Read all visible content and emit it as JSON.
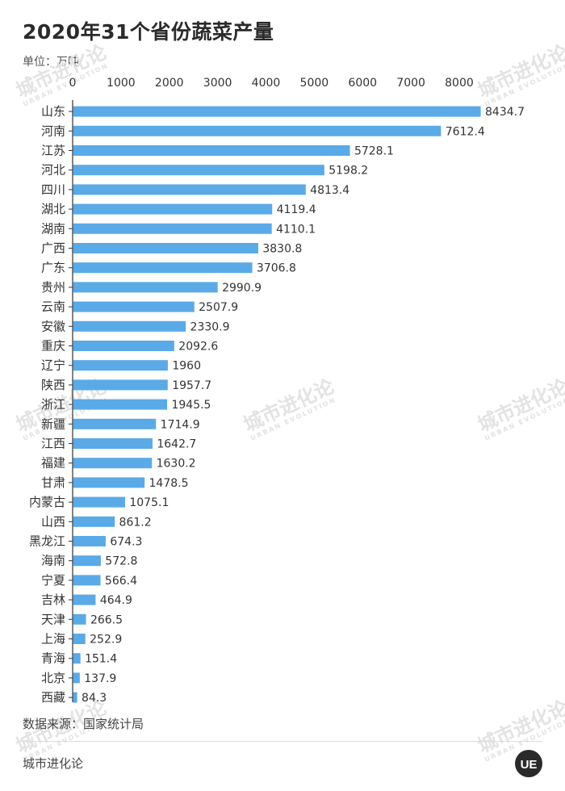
{
  "title": "2020年31个省份蔬菜产量",
  "unit_label": "单位：万吨",
  "source": "数据来源：国家统计局",
  "brand": "城市进化论",
  "logo_text": "UE",
  "watermark": {
    "text": "城市进化论",
    "sub": "URBAN EVOLUTION"
  },
  "colors": {
    "bar": "#5aaae8",
    "axis": "#333333",
    "text": "#333333"
  },
  "chart_data": {
    "type": "bar",
    "orientation": "horizontal",
    "title": "2020年31个省份蔬菜产量",
    "unit": "万吨",
    "xlim": [
      0,
      8434.7
    ],
    "xticks": [
      0,
      1000,
      2000,
      3000,
      4000,
      5000,
      6000,
      7000,
      8000
    ],
    "tick_labels": [
      "0",
      "1000",
      "2000",
      "3000",
      "4000",
      "5000",
      "6000",
      "7000",
      "8000"
    ],
    "grid": false,
    "categories": [
      "山东",
      "河南",
      "江苏",
      "河北",
      "四川",
      "湖北",
      "湖南",
      "广西",
      "广东",
      "贵州",
      "云南",
      "安徽",
      "重庆",
      "辽宁",
      "陕西",
      "浙江",
      "新疆",
      "江西",
      "福建",
      "甘肃",
      "内蒙古",
      "山西",
      "黑龙江",
      "海南",
      "宁夏",
      "吉林",
      "天津",
      "上海",
      "青海",
      "北京",
      "西藏"
    ],
    "values": [
      8434.7,
      7612.4,
      5728.1,
      5198.2,
      4813.4,
      4119.4,
      4110.1,
      3830.8,
      3706.8,
      2990.9,
      2507.9,
      2330.9,
      2092.6,
      1960,
      1957.7,
      1945.5,
      1714.9,
      1642.7,
      1630.2,
      1478.5,
      1075.1,
      861.2,
      674.3,
      572.8,
      566.4,
      464.9,
      266.5,
      252.9,
      151.4,
      137.9,
      84.3
    ],
    "value_labels": [
      "8434.7",
      "7612.4",
      "5728.1",
      "5198.2",
      "4813.4",
      "4119.4",
      "4110.1",
      "3830.8",
      "3706.8",
      "2990.9",
      "2507.9",
      "2330.9",
      "2092.6",
      "1960",
      "1957.7",
      "1945.5",
      "1714.9",
      "1642.7",
      "1630.2",
      "1478.5",
      "1075.1",
      "861.2",
      "674.3",
      "572.8",
      "566.4",
      "464.9",
      "266.5",
      "252.9",
      "151.4",
      "137.9",
      "84.3"
    ]
  }
}
